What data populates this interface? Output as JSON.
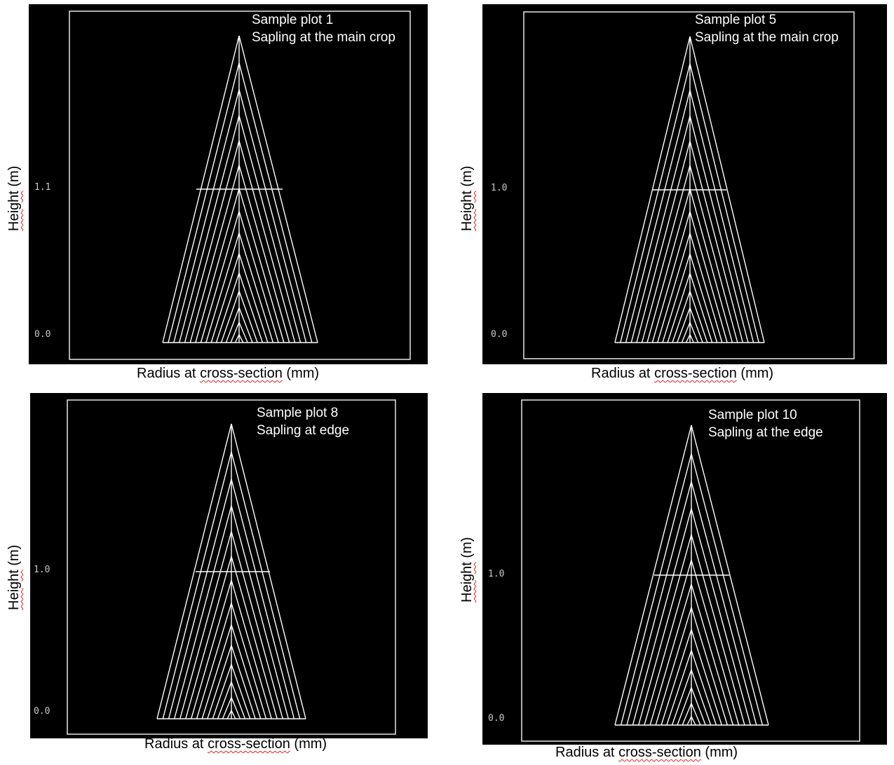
{
  "chart_data": [
    {
      "type": "line",
      "panel": "top-left",
      "annotation": [
        "Sample plot 1",
        "Sapling at the main crop"
      ],
      "xlabel": {
        "pre": "Radius at ",
        "mark": "cross-section",
        "post": " (mm)"
      },
      "ylabel": {
        "pre": "",
        "mark": "Height",
        "post": " (m)"
      },
      "yticks": [
        "1.1",
        "0.0"
      ],
      "grid": false,
      "legend": "none"
    },
    {
      "type": "line",
      "panel": "top-right",
      "annotation": [
        "Sample plot 5",
        "Sapling at the main crop"
      ],
      "xlabel": {
        "pre": "Radius at ",
        "mark": "cross-section",
        "post": " (mm)"
      },
      "ylabel": {
        "pre": "",
        "mark": "Height",
        "post": " (m)"
      },
      "yticks": [
        "1.0",
        "0.0"
      ],
      "grid": false,
      "legend": "none"
    },
    {
      "type": "line",
      "panel": "bottom-left",
      "annotation": [
        "Sample plot 8",
        "Sapling at edge"
      ],
      "xlabel": {
        "pre": "Radius at ",
        "mark": "cross-section",
        "post": " (mm)"
      },
      "ylabel": {
        "pre": "",
        "mark": "Height",
        "post": " (m)"
      },
      "yticks": [
        "1.0",
        "0.0"
      ],
      "grid": false,
      "legend": "none"
    },
    {
      "type": "line",
      "panel": "bottom-right",
      "annotation": [
        "Sample plot 10",
        "Sapling at the edge"
      ],
      "xlabel": {
        "pre": "Radius at ",
        "mark": "cross-section",
        "post": " (mm)"
      },
      "ylabel": {
        "pre": "",
        "mark": "Height",
        "post": " (m)"
      },
      "yticks": [
        "1.0",
        "0.0"
      ],
      "grid": false,
      "legend": "none"
    }
  ],
  "colors": {
    "plot_background": "#000000",
    "lines": "#ffffff",
    "frame": "#d8d8d8",
    "tick_text": "#c8c8c8",
    "spellcheck_underline": "#e02020"
  }
}
